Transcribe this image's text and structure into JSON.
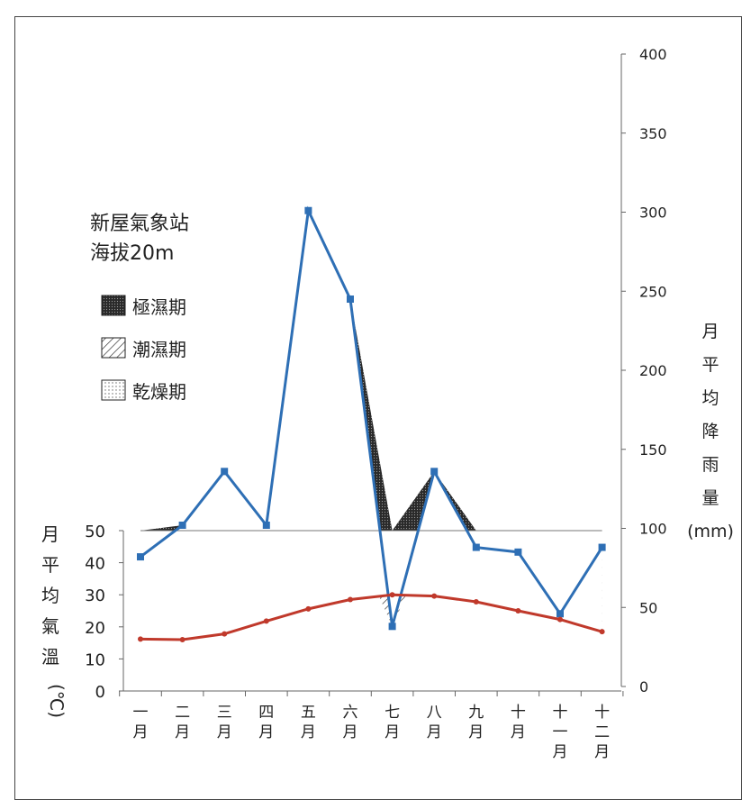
{
  "chart_data": {
    "type": "line",
    "title": "新屋氣象站",
    "subtitle": "海拔20m",
    "categories": [
      [
        "一",
        "月"
      ],
      [
        "二",
        "月"
      ],
      [
        "三",
        "月"
      ],
      [
        "四",
        "月"
      ],
      [
        "五",
        "月"
      ],
      [
        "六",
        "月"
      ],
      [
        "七",
        "月"
      ],
      [
        "八",
        "月"
      ],
      [
        "九",
        "月"
      ],
      [
        "十",
        "月"
      ],
      [
        "十",
        "一",
        "月"
      ],
      [
        "十",
        "二",
        "月"
      ]
    ],
    "series": [
      {
        "name": "月平均降雨量(mm)",
        "axis": "right",
        "values": [
          82,
          102,
          136,
          102,
          301,
          245,
          38,
          136,
          88,
          85,
          46,
          88
        ]
      },
      {
        "axis": "left",
        "values": [
          16.2,
          16.0,
          17.8,
          21.8,
          25.6,
          28.5,
          30.0,
          29.6,
          27.8,
          25.0,
          22.3,
          18.5
        ]
      }
    ],
    "left_axis": {
      "label": [
        "月",
        "平",
        "均",
        "氣",
        "溫",
        "(℃)"
      ],
      "ylim": [
        0,
        50
      ],
      "ticks": [
        0,
        10,
        20,
        30,
        40,
        50
      ]
    },
    "right_axis": {
      "label": [
        "月",
        "平",
        "均",
        "降",
        "雨",
        "量",
        "(mm)"
      ],
      "ylim": [
        0,
        400
      ],
      "ticks": [
        0,
        50,
        100,
        150,
        200,
        250,
        300,
        350,
        400
      ]
    },
    "legend": {
      "placement": "top-left",
      "items": [
        {
          "label": "極濕期",
          "fill": "dense-dots"
        },
        {
          "label": "潮濕期",
          "fill": "diagonal-hatch"
        },
        {
          "label": "乾燥期",
          "fill": "light-dots"
        }
      ]
    },
    "colors": {
      "rain": "#2e6fb5",
      "temp": "#c0392b"
    },
    "grid": false
  }
}
